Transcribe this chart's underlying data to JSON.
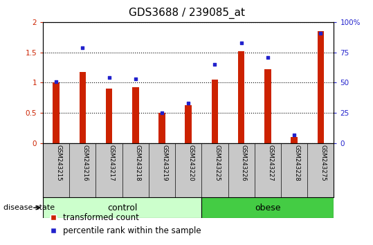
{
  "title": "GDS3688 / 239085_at",
  "categories": [
    "GSM243215",
    "GSM243216",
    "GSM243217",
    "GSM243218",
    "GSM243219",
    "GSM243220",
    "GSM243225",
    "GSM243226",
    "GSM243227",
    "GSM243228",
    "GSM243275"
  ],
  "red_values": [
    1.0,
    1.18,
    0.9,
    0.92,
    0.5,
    0.63,
    1.05,
    1.52,
    1.22,
    0.1,
    1.85
  ],
  "blue_values_pct": [
    51,
    79,
    54,
    53,
    25,
    33,
    65,
    83,
    71,
    7,
    91
  ],
  "ylim_left": [
    0,
    2
  ],
  "ylim_right": [
    0,
    100
  ],
  "yticks_left": [
    0,
    0.5,
    1.0,
    1.5,
    2.0
  ],
  "yticks_right": [
    0,
    25,
    50,
    75,
    100
  ],
  "ytick_labels_left": [
    "0",
    "0.5",
    "1",
    "1.5",
    "2"
  ],
  "ytick_labels_right": [
    "0",
    "25",
    "50",
    "75",
    "100%"
  ],
  "control_count": 6,
  "obese_count": 5,
  "red_color": "#cc2200",
  "blue_color": "#2222cc",
  "bar_width": 0.25,
  "bg_color": "#c8c8c8",
  "control_color": "#ccffcc",
  "obese_color": "#44cc44",
  "legend_red_label": "transformed count",
  "legend_blue_label": "percentile rank within the sample",
  "title_fontsize": 11,
  "tick_fontsize": 7.5,
  "group_label_fontsize": 9,
  "legend_fontsize": 8.5
}
